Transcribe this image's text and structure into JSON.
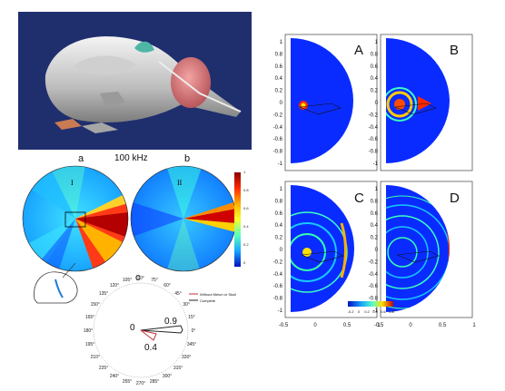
{
  "figure": {
    "freq_label": "100 kHz",
    "panel_a_label": "a",
    "panel_b_label": "b",
    "panel_c_label": "c",
    "panel_a_roman": "I",
    "panel_b_roman": "II",
    "colorbar_ticks": [
      "1",
      "0.8",
      "0.6",
      "0.4",
      "0.2",
      "0"
    ],
    "polar": {
      "angles": [
        "90°",
        "75°",
        "60°",
        "45°",
        "30°",
        "15°",
        "0°",
        "345°",
        "330°",
        "315°",
        "300°",
        "285°",
        "270°",
        "255°",
        "240°",
        "225°",
        "210°",
        "195°",
        "180°",
        "165°",
        "150°",
        "135°",
        "120°",
        "105°"
      ],
      "legend": [
        "Without Melon or Skull",
        "Complete"
      ],
      "value_labels": [
        "0",
        "0.9",
        "0.4"
      ]
    },
    "right_panels": {
      "letters": [
        "A",
        "B",
        "C",
        "D"
      ],
      "y_ticks": [
        "1",
        "0.8",
        "0.6",
        "0.4",
        "0.2",
        "0",
        "-0.2",
        "-0.4",
        "-0.6",
        "-0.8",
        "-1"
      ],
      "x_ticks": [
        "-0.5",
        "0",
        "0.5",
        "1"
      ],
      "colorbar_ticks": [
        "-0.2",
        "0",
        "0.2",
        "0.4",
        "0.6",
        "0.8"
      ]
    }
  },
  "colors": {
    "render_bg": "#1f2f6e",
    "field_blue": "#0a2bff",
    "polar_red": "#c0303a",
    "polar_dark": "#222222"
  }
}
